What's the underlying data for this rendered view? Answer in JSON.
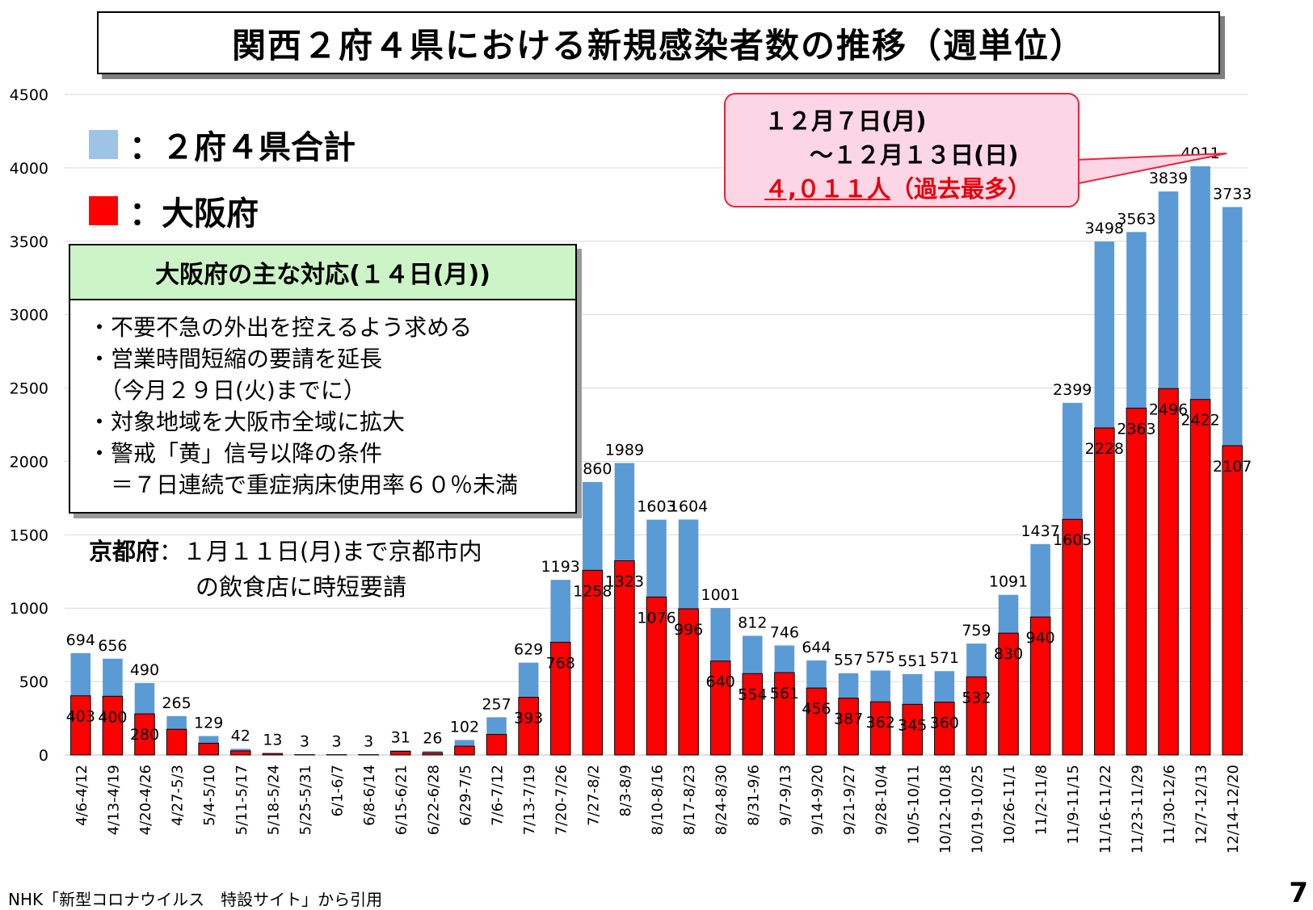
{
  "title": "関西２府４県における新規感染者数の推移（週単位）",
  "legend": {
    "total_label": "：２府４県合計",
    "osaka_label": "：大阪府",
    "total_color": "#5b9bd5",
    "total_swatch_color": "#9dc3e6",
    "osaka_color": "#ff0000"
  },
  "callout": {
    "line1": "１２月７日(月)",
    "line2": "～１２月１３日(日)",
    "line3_number": "４,０１１人",
    "line3_suffix": "（過去最多）"
  },
  "osaka_actions": {
    "header": "大阪府の主な対応(１４日(月))",
    "lines": [
      "・不要不急の外出を控えるよう求める",
      "・営業時間短縮の要請を延長",
      "　（今月２９日(火)までに）",
      "・対象地域を大阪市全域に拡大",
      "・警戒「黄」信号以降の条件",
      "　＝７日連続で重症病床使用率６０％未満"
    ]
  },
  "kyoto": {
    "label": "京都府",
    "line1": "：１月１１日(月)まで京都市内",
    "line2": "の飲食店に時短要請"
  },
  "source_note": "NHK「新型コロナウイルス　特設サイト」から引用",
  "page_number": "7",
  "chart_data": {
    "type": "bar",
    "ylim": [
      0,
      4500
    ],
    "yticks": [
      0,
      500,
      1000,
      1500,
      2000,
      2500,
      3000,
      3500,
      4000,
      4500
    ],
    "grid": true,
    "categories": [
      "4/6-4/12",
      "4/13-4/19",
      "4/20-4/26",
      "4/27-5/3",
      "5/4-5/10",
      "5/11-5/17",
      "5/18-5/24",
      "5/25-5/31",
      "6/1-6/7",
      "6/8-6/14",
      "6/15-6/21",
      "6/22-6/28",
      "6/29-7/5",
      "7/6-7/12",
      "7/13-7/19",
      "7/20-7/26",
      "7/27-8/2",
      "8/3-8/9",
      "8/10-8/16",
      "8/17-8/23",
      "8/24-8/30",
      "8/31-9/6",
      "9/7-9/13",
      "9/14-9/20",
      "9/21-9/27",
      "9/28-10/4",
      "10/5-10/11",
      "10/12-10/18",
      "10/19-10/25",
      "10/26-11/1",
      "11/2-11/8",
      "11/9-11/15",
      "11/16-11/22",
      "11/23-11/29",
      "11/30-12/6",
      "12/7-12/13",
      "12/14-12/20"
    ],
    "series": [
      {
        "name": "２府４県合計",
        "values": [
          694,
          656,
          490,
          265,
          129,
          42,
          13,
          3,
          3,
          3,
          31,
          26,
          102,
          257,
          629,
          1193,
          1860,
          1989,
          1603,
          1604,
          1001,
          812,
          746,
          644,
          557,
          575,
          551,
          571,
          759,
          1091,
          1437,
          2399,
          3498,
          3563,
          3839,
          4011,
          3733
        ]
      },
      {
        "name": "大阪府",
        "values": [
          403,
          400,
          280,
          175,
          80,
          28,
          10,
          2,
          2,
          2,
          25,
          15,
          60,
          140,
          393,
          768,
          1258,
          1323,
          1076,
          996,
          640,
          554,
          561,
          456,
          387,
          362,
          345,
          360,
          532,
          830,
          940,
          1605,
          2228,
          2363,
          2496,
          2422,
          2107
        ]
      }
    ],
    "osaka_labeled": [
      true,
      true,
      true,
      false,
      false,
      false,
      false,
      false,
      false,
      false,
      false,
      false,
      false,
      false,
      true,
      true,
      true,
      true,
      true,
      true,
      true,
      true,
      true,
      true,
      true,
      true,
      true,
      true,
      true,
      true,
      true,
      true,
      true,
      true,
      true,
      true,
      true
    ]
  }
}
